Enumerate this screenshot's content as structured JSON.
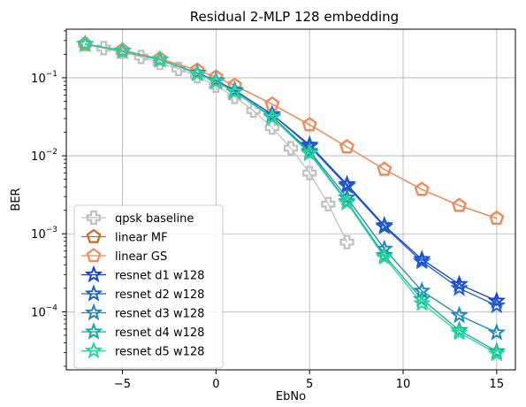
{
  "chart_data": {
    "type": "line",
    "title": "Residual 2-MLP 128 embedding",
    "xlabel": "EbNo",
    "ylabel": "BER",
    "xlim": [
      -8,
      16
    ],
    "ylim": [
      1.8e-05,
      0.42
    ],
    "yscale": "log",
    "grid": true,
    "legend_position": "lower-left",
    "xticks": [
      -5,
      0,
      5,
      10,
      15
    ],
    "xtick_labels": [
      "−5",
      "0",
      "5",
      "10",
      "15"
    ],
    "yticks": [
      0.0001,
      0.001,
      0.01,
      0.1
    ],
    "ytick_base": "10",
    "ytick_exponents": [
      "−4",
      "−3",
      "−2",
      "−1"
    ],
    "series": [
      {
        "name": "qpsk baseline",
        "color": "#c0c0c0",
        "marker": "plus",
        "x": [
          -7,
          -6,
          -5,
          -4,
          -3,
          -2,
          -1,
          0,
          1,
          2,
          3,
          4,
          5,
          6,
          7
        ],
        "y": [
          0.27,
          0.24,
          0.215,
          0.185,
          0.155,
          0.13,
          0.105,
          0.079,
          0.057,
          0.038,
          0.023,
          0.0125,
          0.006,
          0.0024,
          0.00078
        ]
      },
      {
        "name": "linear MF",
        "color": "#cc6622",
        "marker": "pentagon",
        "x": [
          -7,
          -5,
          -3,
          -1,
          0,
          1,
          3,
          5,
          7,
          9,
          11,
          13,
          15
        ],
        "y": [
          0.27,
          0.225,
          0.175,
          0.125,
          0.102,
          0.08,
          0.046,
          0.025,
          0.013,
          0.0067,
          0.0037,
          0.0023,
          0.00158
        ]
      },
      {
        "name": "linear GS",
        "color": "#f08a5d",
        "marker": "pentagon",
        "x": [
          -7,
          -5,
          -3,
          -1,
          0,
          1,
          3,
          5,
          7,
          9,
          11,
          13,
          15
        ],
        "y": [
          0.27,
          0.225,
          0.175,
          0.125,
          0.102,
          0.08,
          0.046,
          0.025,
          0.013,
          0.0067,
          0.0037,
          0.0023,
          0.00158
        ]
      },
      {
        "name": "resnet d1 w128",
        "color": "#1a3fd8",
        "marker": "star",
        "x": [
          -7,
          -5,
          -3,
          -1,
          0,
          1,
          3,
          5,
          7,
          9,
          11,
          13,
          15
        ],
        "y": [
          0.27,
          0.22,
          0.17,
          0.115,
          0.092,
          0.069,
          0.034,
          0.0138,
          0.0043,
          0.00128,
          0.00047,
          0.000225,
          0.000138
        ]
      },
      {
        "name": "resnet d2 w128",
        "color": "#1f5fc8",
        "marker": "star",
        "x": [
          -7,
          -5,
          -3,
          -1,
          0,
          1,
          3,
          5,
          7,
          9,
          11,
          13,
          15
        ],
        "y": [
          0.27,
          0.22,
          0.17,
          0.115,
          0.092,
          0.069,
          0.034,
          0.0133,
          0.0041,
          0.00123,
          0.00044,
          0.0002,
          0.00012
        ]
      },
      {
        "name": "resnet d3 w128",
        "color": "#1e86b8",
        "marker": "star",
        "x": [
          -7,
          -5,
          -3,
          -1,
          0,
          1,
          3,
          5,
          7,
          9,
          11,
          13,
          15
        ],
        "y": [
          0.27,
          0.22,
          0.17,
          0.113,
          0.09,
          0.066,
          0.032,
          0.0115,
          0.0029,
          0.00064,
          0.000185,
          9e-05,
          5.4e-05
        ]
      },
      {
        "name": "resnet d4 w128",
        "color": "#14a8a0",
        "marker": "star",
        "x": [
          -7,
          -5,
          -3,
          -1,
          0,
          1,
          3,
          5,
          7,
          9,
          11,
          13,
          15
        ],
        "y": [
          0.27,
          0.22,
          0.17,
          0.113,
          0.09,
          0.066,
          0.031,
          0.011,
          0.0026,
          0.00053,
          0.000145,
          5.8e-05,
          3.1e-05
        ]
      },
      {
        "name": "resnet d5 w128",
        "color": "#22d99a",
        "marker": "star",
        "x": [
          -7,
          -5,
          -3,
          -1,
          0,
          1,
          3,
          5,
          7,
          9,
          11,
          13,
          15
        ],
        "y": [
          0.27,
          0.22,
          0.17,
          0.113,
          0.09,
          0.066,
          0.031,
          0.0107,
          0.0025,
          0.0005,
          0.000128,
          5.4e-05,
          2.9e-05
        ]
      }
    ]
  }
}
